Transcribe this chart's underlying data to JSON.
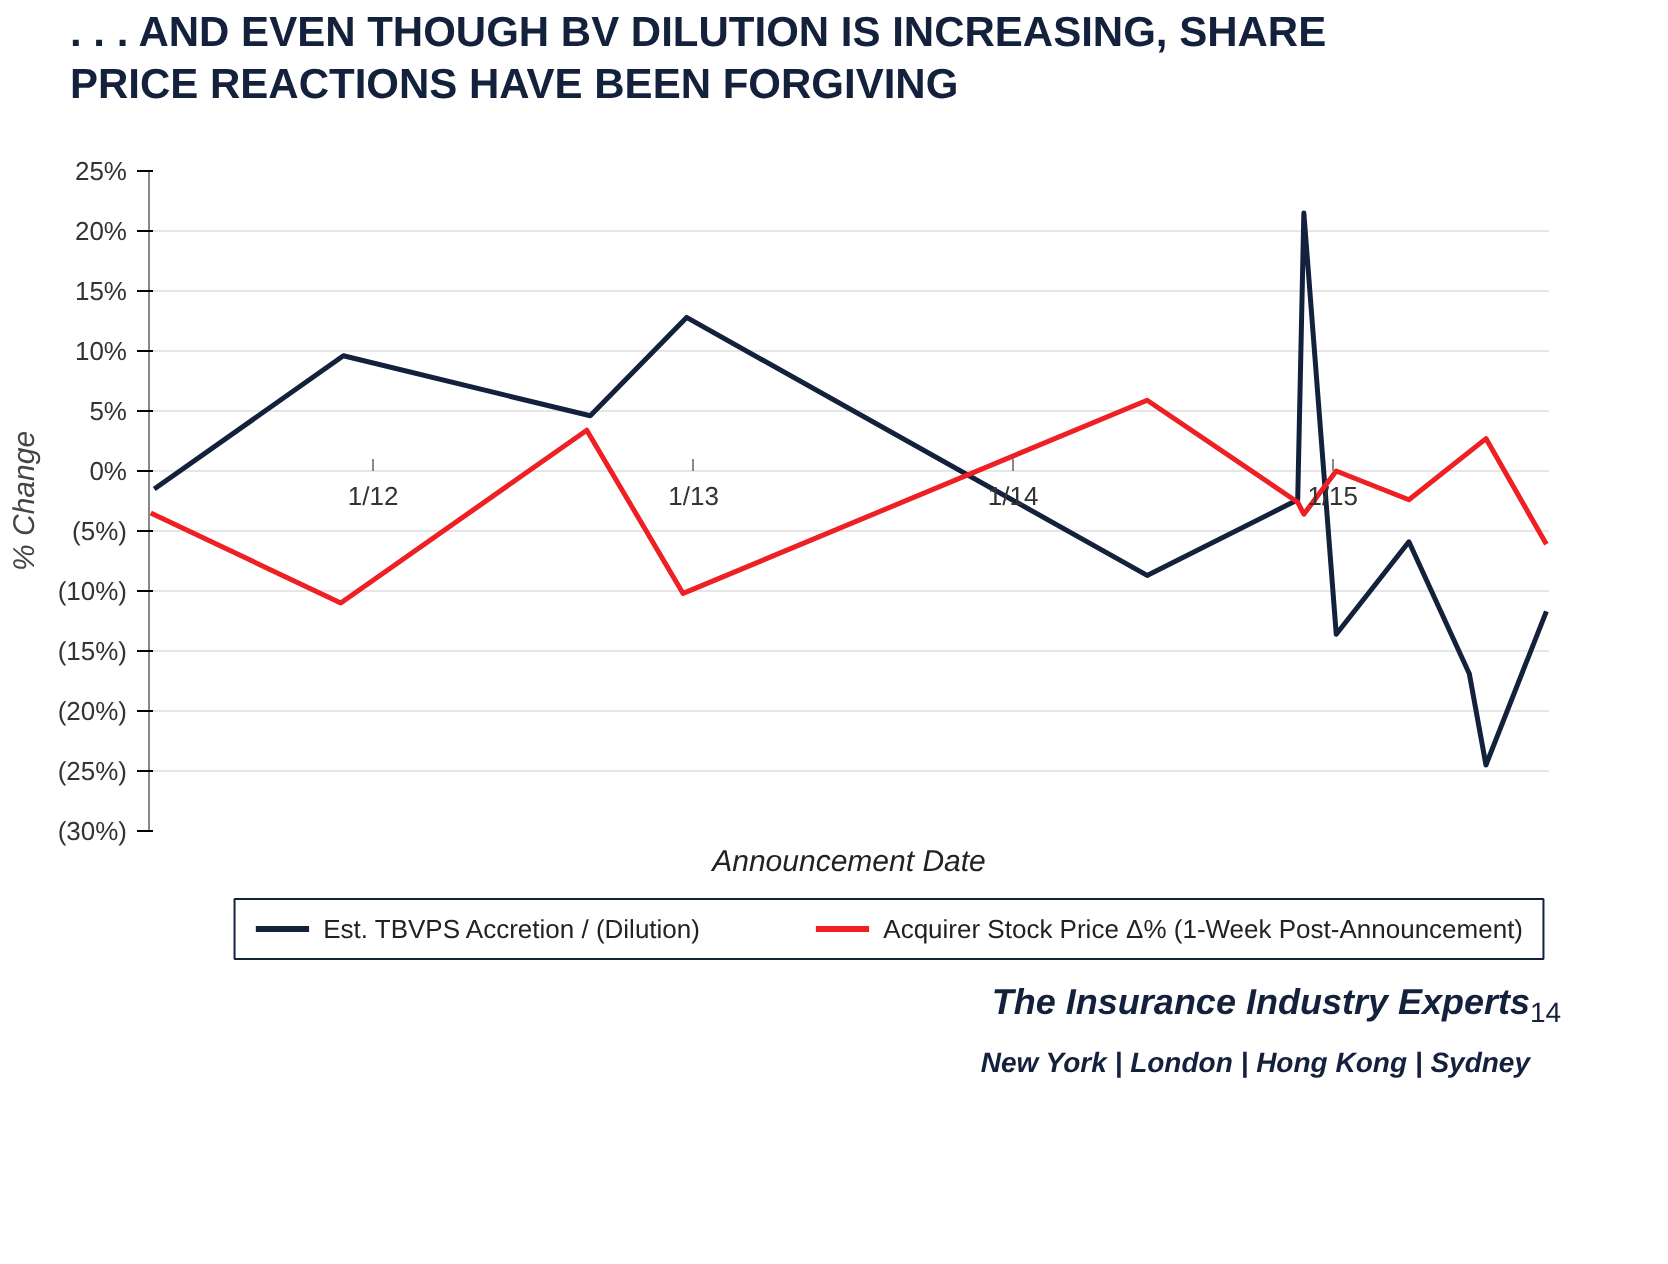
{
  "chart_data": {
    "type": "line",
    "title": ". . . AND EVEN THOUGH BV DILUTION IS INCREASING, SHARE PRICE REACTIONS HAVE BEEN FORGIVING",
    "xlabel": "Announcement Date",
    "ylabel": "% Change",
    "xlim": [
      "2011-04-20",
      "2015-09-05"
    ],
    "xticks": [
      {
        "value": "2012-01",
        "label": "1/12"
      },
      {
        "value": "2013-01",
        "label": "1/13"
      },
      {
        "value": "2014-01",
        "label": "1/14"
      },
      {
        "value": "2015-01",
        "label": "1/15"
      }
    ],
    "ylim": [
      -30,
      25
    ],
    "yticks": [
      {
        "value": 25,
        "label": "25%"
      },
      {
        "value": 20,
        "label": "20%"
      },
      {
        "value": 15,
        "label": "15%"
      },
      {
        "value": 10,
        "label": "10%"
      },
      {
        "value": 5,
        "label": "5%"
      },
      {
        "value": 0,
        "label": "0%"
      },
      {
        "value": -5,
        "label": "(5%)"
      },
      {
        "value": -10,
        "label": "(10%)"
      },
      {
        "value": -15,
        "label": "(15%)"
      },
      {
        "value": -20,
        "label": "(20%)"
      },
      {
        "value": -25,
        "label": "(25%)"
      },
      {
        "value": -30,
        "label": "(30%)"
      }
    ],
    "series": [
      {
        "name": "Est. TBVPS Accretion / (Dilution)",
        "color": "#14213d",
        "x": [
          "2011-04-26",
          "2011-11-28",
          "2012-09-05",
          "2012-12-24",
          "2014-06-03",
          "2014-11-22",
          "2014-11-29",
          "2015-01-05",
          "2015-03-29",
          "2015-06-06",
          "2015-06-25",
          "2015-09-02"
        ],
        "values": [
          -1.5,
          9.6,
          4.6,
          12.8,
          -8.7,
          -2.4,
          21.5,
          -13.6,
          -5.9,
          -16.9,
          -24.5,
          -11.7
        ]
      },
      {
        "name": "Acquirer Stock Price Δ% (1-Week Post-Announcement)",
        "color": "#ee2024",
        "x": [
          "2011-04-22",
          "2011-11-25",
          "2012-09-01",
          "2012-12-20",
          "2014-06-03",
          "2014-11-22",
          "2014-11-29",
          "2015-01-05",
          "2015-03-29",
          "2015-06-25",
          "2015-09-02"
        ],
        "values": [
          -3.5,
          -11.0,
          3.4,
          -10.2,
          5.9,
          -2.6,
          -3.6,
          0,
          -2.4,
          2.7,
          -6.1
        ]
      }
    ],
    "grid": "y",
    "legend": "bottom",
    "line_style": "solid",
    "marker": "none",
    "annotations": [
      "The Insurance Industry Experts",
      "New York | London | Hong Kong | Sydney",
      "14"
    ]
  }
}
